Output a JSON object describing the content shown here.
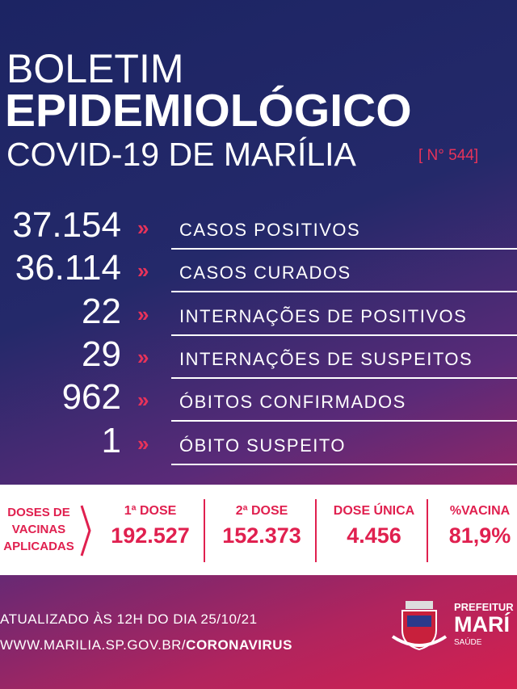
{
  "header": {
    "line1": "BOLETIM",
    "line2": "EPIDEMIOLÓGICO",
    "line3": "COVID-19 DE MARÍLIA",
    "issue": "[ N° 544]"
  },
  "stats": [
    {
      "number": "37.154",
      "label": "CASOS POSITIVOS"
    },
    {
      "number": "36.114",
      "label": "CASOS CURADOS"
    },
    {
      "number": "22",
      "label": "INTERNAÇÕES DE POSITIVOS"
    },
    {
      "number": "29",
      "label": "INTERNAÇÕES DE SUSPEITOS"
    },
    {
      "number": "962",
      "label": "ÓBITOS CONFIRMADOS"
    },
    {
      "number": "1",
      "label": "ÓBITO SUSPEITO"
    }
  ],
  "vaccines": {
    "heading": [
      "DOSES DE",
      "VACINAS",
      "APLICADAS"
    ],
    "columns": [
      {
        "label": "1ª DOSE",
        "value": "192.527"
      },
      {
        "label": "2ª DOSE",
        "value": "152.373"
      },
      {
        "label": "DOSE ÚNICA",
        "value": "4.456"
      },
      {
        "label": "%VACINA",
        "value": "81,9%"
      }
    ]
  },
  "footer": {
    "updated": "ATUALIZADO ÀS 12H DO DIA 25/10/21",
    "site": "WWW.MARILIA.SP.GOV.BR/",
    "site_bold": "CORONAVIRUS",
    "org1": "PREFEITUR",
    "org2": "MARÍ",
    "org3": "SAÚDE"
  }
}
